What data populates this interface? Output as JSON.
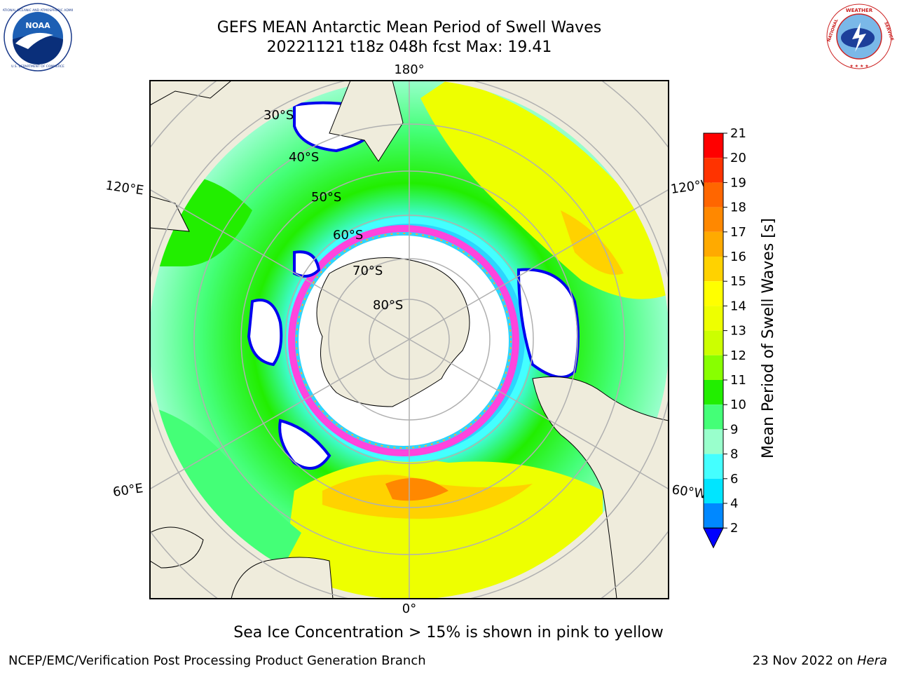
{
  "header": {
    "title_line1": "GEFS MEAN Antarctic Mean Period of Swell Waves",
    "title_line2": "20221121 t18z 048h fcst   Max: 19.41"
  },
  "logos": {
    "left": "NOAA",
    "left_ring": "NATIONAL OCEANIC AND ATMOSPHERIC ADMINISTRATION · U.S. DEPARTMENT OF COMMERCE",
    "right_ring": "NATIONAL WEATHER SERVICE"
  },
  "map": {
    "longitude_labels": {
      "top": "180°",
      "bottom": "0°",
      "left_upper": "120°E",
      "left_lower": "60°E",
      "right_upper": "120°W",
      "right_lower": "60°W"
    },
    "latitude_labels": [
      "30°S",
      "40°S",
      "50°S",
      "60°S",
      "70°S",
      "80°S"
    ],
    "colors": {
      "land": "#efecdc",
      "ice": "#ffffff",
      "ice_edge": "#ff44dd",
      "ice_mark": "#ffaa33",
      "grid": "#b0b0b0"
    }
  },
  "colorbar": {
    "label": "Mean Period of Swell Waves [s]",
    "ticks": [
      "21",
      "20",
      "19",
      "18",
      "17",
      "16",
      "15",
      "14",
      "13",
      "12",
      "11",
      "10",
      "9",
      "8",
      "6",
      "4",
      "2"
    ],
    "colors": [
      "#ff0000",
      "#ff3300",
      "#ff6600",
      "#ff8800",
      "#ffaa00",
      "#ffd200",
      "#ffff00",
      "#eeff00",
      "#ccff00",
      "#88ff00",
      "#22ee00",
      "#44ff77",
      "#99ffcc",
      "#44ffff",
      "#00e5ff",
      "#0088ff"
    ],
    "under_color": "#0000ff"
  },
  "bottom_note": "Sea Ice Concentration > 15% is shown in pink to yellow",
  "footer": {
    "left": "NCEP/EMC/Verification Post Processing Product Generation Branch",
    "right_date": "23 Nov 2022 on ",
    "right_machine": "Hera"
  }
}
